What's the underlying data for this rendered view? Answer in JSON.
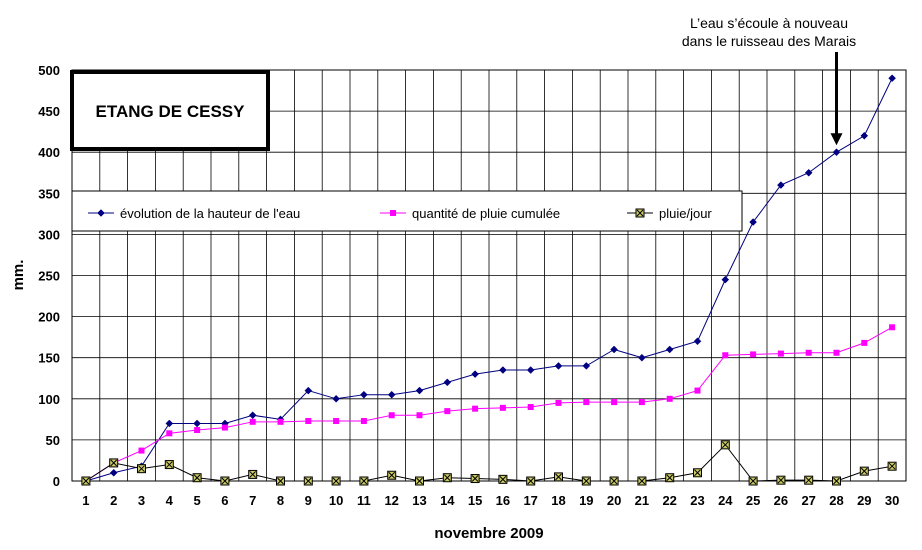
{
  "chart_data": {
    "type": "line",
    "title": "ETANG DE CESSY",
    "xlabel": "novembre 2009",
    "ylabel": "mm.",
    "x": [
      1,
      2,
      3,
      4,
      5,
      6,
      7,
      8,
      9,
      10,
      11,
      12,
      13,
      14,
      15,
      16,
      17,
      18,
      19,
      20,
      21,
      22,
      23,
      24,
      25,
      26,
      27,
      28,
      29,
      30
    ],
    "xticks": [
      "1",
      "2",
      "3",
      "4",
      "5",
      "6",
      "7",
      "8",
      "9",
      "10",
      "11",
      "12",
      "13",
      "14",
      "15",
      "16",
      "17",
      "18",
      "19",
      "20",
      "21",
      "22",
      "23",
      "24",
      "25",
      "26",
      "27",
      "28",
      "29",
      "30"
    ],
    "ylim": [
      0,
      500
    ],
    "yticks": [
      "0",
      "50",
      "100",
      "150",
      "200",
      "250",
      "300",
      "350",
      "400",
      "450",
      "500"
    ],
    "grid": true,
    "legend_position": "middle-left",
    "series": [
      {
        "name": "évolution de la hauteur de l'eau",
        "color": "#000080",
        "marker": "diamond",
        "values": [
          0,
          10,
          18,
          70,
          70,
          70,
          80,
          75,
          110,
          100,
          105,
          105,
          110,
          120,
          130,
          135,
          135,
          140,
          140,
          160,
          150,
          160,
          170,
          245,
          315,
          360,
          375,
          400,
          420,
          490
        ]
      },
      {
        "name": "quantité de pluie cumulée",
        "color": "#ff00ff",
        "marker": "square",
        "values": [
          0,
          22,
          37,
          58,
          62,
          65,
          72,
          72,
          73,
          73,
          73,
          80,
          80,
          85,
          88,
          89,
          90,
          95,
          96,
          96,
          96,
          100,
          110,
          153,
          154,
          155,
          156,
          156,
          168,
          187
        ]
      },
      {
        "name": "pluie/jour",
        "color": "#000000",
        "marker": "x-square",
        "values": [
          0,
          22,
          15,
          20,
          4,
          0,
          8,
          0,
          0,
          0,
          0,
          7,
          0,
          4,
          3,
          2,
          0,
          5,
          0,
          0,
          0,
          4,
          10,
          44,
          0,
          1,
          1,
          0,
          12,
          18
        ]
      }
    ],
    "annotation": {
      "line1": "L’eau s’écoule à nouveau",
      "line2": "dans le ruisseau des Marais",
      "x": 28,
      "y": 400
    }
  }
}
